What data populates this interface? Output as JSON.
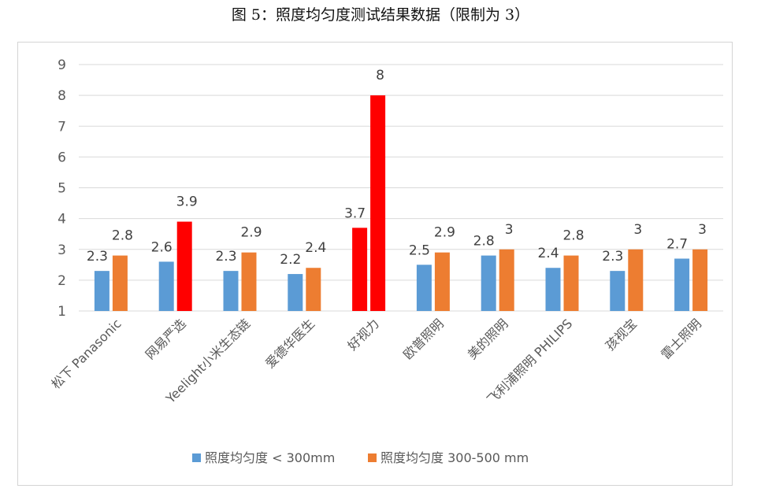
{
  "title": "图 5：照度均匀度测试结果数据（限制为 3）",
  "colors": {
    "series1": "#5b9bd5",
    "series2": "#ed7d31",
    "highlight": "#ff0000"
  },
  "chart_data": {
    "type": "bar",
    "title": "图 5：照度均匀度测试结果数据（限制为 3）",
    "xlabel": "",
    "ylabel": "",
    "ylim": [
      1,
      9
    ],
    "yticks": [
      "1",
      "2",
      "3",
      "4",
      "5",
      "6",
      "7",
      "8",
      "9"
    ],
    "grid": true,
    "legend_position": "bottom",
    "categories": [
      "松下 Panasonic",
      "网易严选",
      "Yeelight小米生态链",
      "爱德华医生",
      "好视力",
      "欧普照明",
      "美的照明",
      "飞利浦照明 PHILIPS",
      "孩视宝",
      "雷士照明"
    ],
    "series": [
      {
        "name": "照度均匀度 < 300mm",
        "values": [
          2.3,
          2.6,
          2.3,
          2.2,
          3.7,
          2.5,
          2.8,
          2.4,
          2.3,
          2.7
        ],
        "labels": [
          "2.3",
          "2.6",
          "2.3",
          "2.2",
          "3.7",
          "2.5",
          "2.8",
          "2.4",
          "2.3",
          "2.7"
        ]
      },
      {
        "name": "照度均匀度 300-500 mm",
        "values": [
          2.8,
          3.9,
          2.9,
          2.4,
          8,
          2.9,
          3,
          2.8,
          3,
          3
        ],
        "labels": [
          "2.8",
          "3.9",
          "2.9",
          "2.4",
          "8",
          "2.9",
          "3",
          "2.8",
          "3",
          "3"
        ]
      }
    ],
    "highlighted": [
      {
        "series": 0,
        "index": 4
      },
      {
        "series": 1,
        "index": 1
      },
      {
        "series": 1,
        "index": 4
      }
    ]
  }
}
